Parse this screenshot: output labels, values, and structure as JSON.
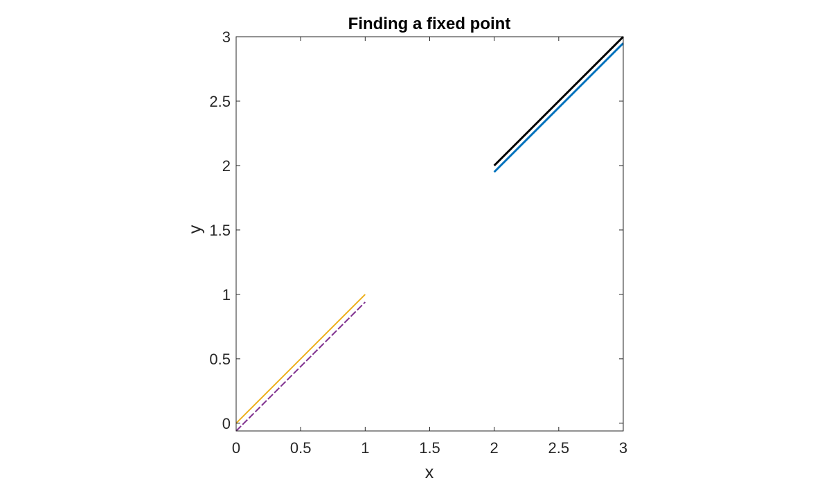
{
  "chart_data": {
    "type": "line",
    "title": "Finding a fixed point",
    "xlabel": "x",
    "ylabel": "y",
    "xlim": [
      0,
      3
    ],
    "ylim": [
      -0.06,
      3
    ],
    "grid": false,
    "box": true,
    "xticks": [
      0,
      0.5,
      1,
      1.5,
      2,
      2.5,
      3
    ],
    "xtick_labels": [
      "0",
      "0.5",
      "1",
      "1.5",
      "2",
      "2.5",
      "3"
    ],
    "yticks": [
      0,
      0.5,
      1,
      1.5,
      2,
      2.5,
      3
    ],
    "ytick_labels": [
      "0",
      "0.5",
      "1",
      "1.5",
      "2",
      "2.5",
      "3"
    ],
    "series": [
      {
        "color": "#000000",
        "line": "solid",
        "weight": "thick",
        "x": [
          2,
          3
        ],
        "y": [
          2,
          3
        ]
      },
      {
        "color": "#0072BD",
        "line": "solid",
        "weight": "thick",
        "x": [
          2,
          3
        ],
        "y": [
          1.95,
          2.95
        ]
      },
      {
        "color": "#EDB120",
        "line": "solid",
        "weight": "thin",
        "x": [
          0,
          1
        ],
        "y": [
          0,
          1
        ]
      },
      {
        "color": "#7E2F8E",
        "line": "dashed",
        "weight": "thin",
        "x": [
          0,
          1
        ],
        "y": [
          -0.06,
          0.94
        ]
      }
    ]
  }
}
